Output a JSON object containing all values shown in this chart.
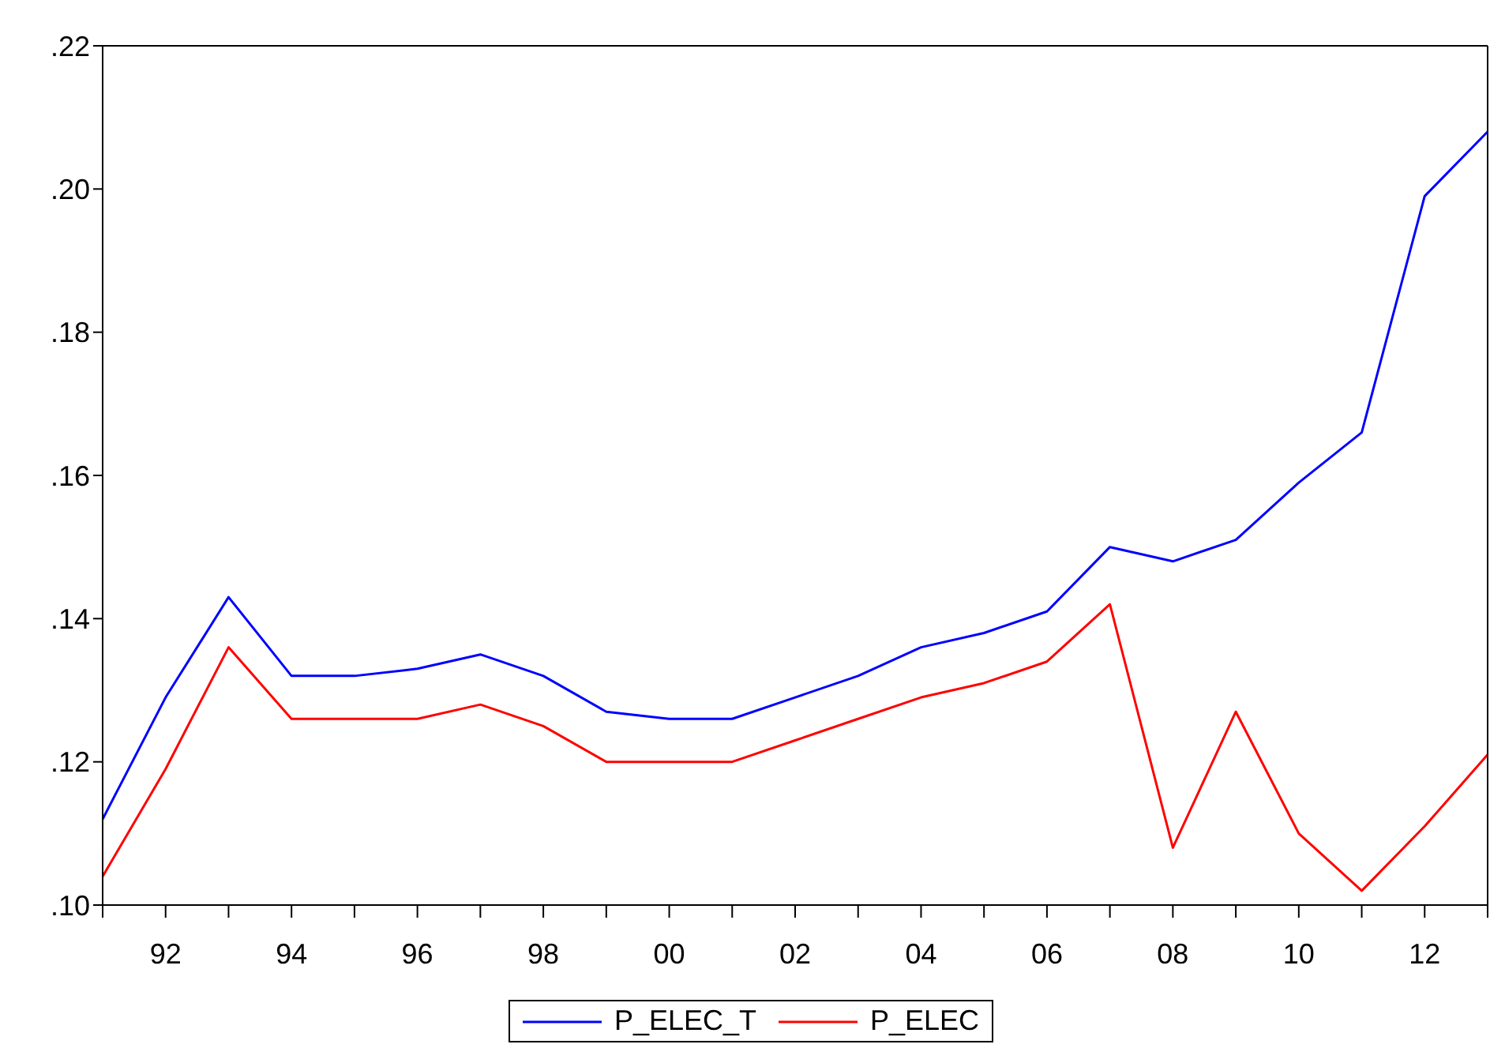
{
  "chart_data": {
    "type": "line",
    "categories": [
      null,
      "92",
      null,
      "94",
      null,
      "96",
      null,
      "98",
      null,
      "00",
      null,
      "02",
      null,
      "04",
      null,
      "06",
      null,
      "08",
      null,
      "10",
      null,
      "12",
      null
    ],
    "series": [
      {
        "name": "P_ELEC_T",
        "color": "#0000ff",
        "values": [
          0.112,
          0.129,
          0.143,
          0.132,
          0.132,
          0.133,
          0.135,
          0.132,
          0.127,
          0.126,
          0.126,
          0.129,
          0.132,
          0.136,
          0.138,
          0.141,
          0.15,
          0.148,
          0.151,
          0.159,
          0.166,
          0.199,
          0.208
        ]
      },
      {
        "name": "P_ELEC",
        "color": "#ff0000",
        "values": [
          0.104,
          0.119,
          0.136,
          0.126,
          0.126,
          0.126,
          0.128,
          0.125,
          0.12,
          0.12,
          0.12,
          0.123,
          0.126,
          0.129,
          0.131,
          0.134,
          0.142,
          0.108,
          0.127,
          0.11,
          0.102,
          0.111,
          0.121
        ]
      }
    ],
    "ylim": [
      0.1,
      0.22
    ],
    "yticks": [
      {
        "value": 0.1,
        "label": ".10"
      },
      {
        "value": 0.12,
        "label": ".12"
      },
      {
        "value": 0.14,
        "label": ".14"
      },
      {
        "value": 0.16,
        "label": ".16"
      },
      {
        "value": 0.18,
        "label": ".18"
      },
      {
        "value": 0.2,
        "label": ".20"
      },
      {
        "value": 0.22,
        "label": ".22"
      }
    ],
    "grid": false,
    "legend": "bottom",
    "marker": "none",
    "line_style": "solid"
  }
}
